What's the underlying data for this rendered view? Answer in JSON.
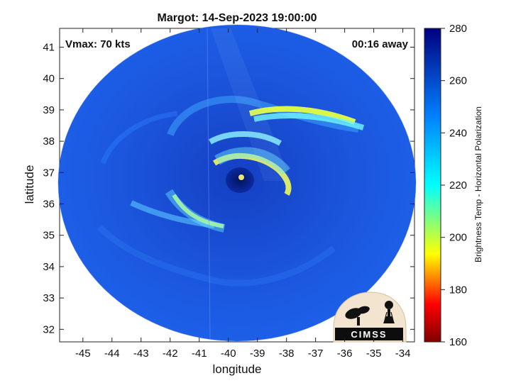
{
  "chart_data": {
    "type": "heatmap",
    "title": "Margot: 14-Sep-2023 19:00:00",
    "xlabel": "longitude",
    "ylabel": "latitude",
    "x_ticks": [
      -45,
      -44,
      -43,
      -42,
      -41,
      -40,
      -39,
      -38,
      -37,
      -36,
      -35,
      -34
    ],
    "y_ticks": [
      32,
      33,
      34,
      35,
      36,
      37,
      38,
      39,
      40,
      41
    ],
    "xlim": [
      -45.8,
      -33.6
    ],
    "ylim": [
      31.6,
      41.6
    ],
    "annotations": {
      "vmax": "Vmax: 70 kts",
      "time_offset": "00:16 away"
    },
    "colorbar": {
      "label": "Brightness Temp - Horizontal Polarization",
      "ticks": [
        160,
        180,
        200,
        220,
        240,
        260,
        280
      ],
      "range": [
        160,
        280
      ],
      "colormap": "jet"
    },
    "field": {
      "description": "Microwave brightness temperature field",
      "center": {
        "lon": -39.3,
        "lat": 36.7
      },
      "radius_deg_lon": 6.2,
      "radius_deg_lat": 5.0,
      "background_value": 262,
      "features": [
        {
          "label": "eye",
          "value": 272
        },
        {
          "label": "eyewall",
          "value": 225
        },
        {
          "label": "northern band",
          "value": 205
        },
        {
          "label": "southwest band",
          "value": 235
        }
      ]
    }
  },
  "logo": {
    "text": "CIMSS"
  },
  "colors": {
    "panel_border": "#222222",
    "disk_fill": "#1c4fd2",
    "eye": "#061a6f"
  }
}
